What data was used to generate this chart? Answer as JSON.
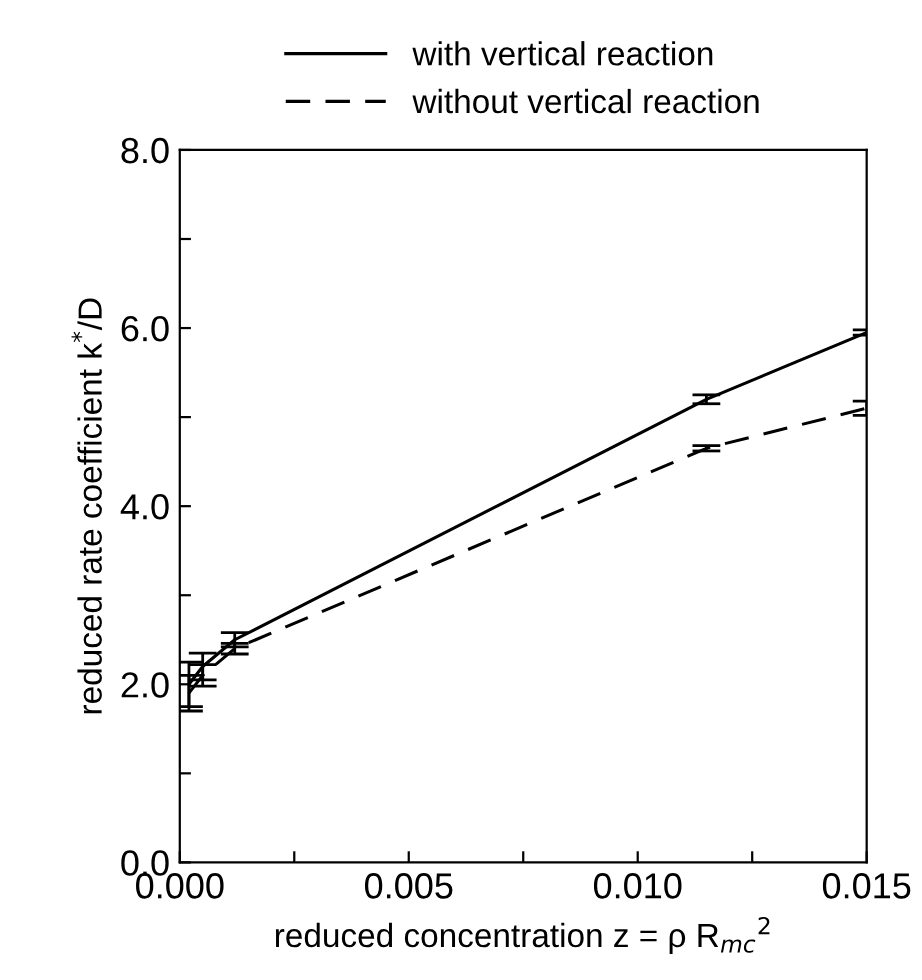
{
  "chart_data": {
    "type": "line",
    "xlabel": "reduced concentration z = ρ R$_{mc}$$^{2}$",
    "ylabel": "reduced rate coefficient k$^{*}$/D",
    "x": [
      0.0002,
      0.0005,
      0.0012,
      0.0115,
      0.015
    ],
    "series": [
      {
        "name": "with vertical reaction",
        "color": "#000000",
        "line_style": "solid",
        "values": [
          2.0,
          2.2,
          2.5,
          5.2,
          5.95
        ],
        "errors": [
          0.25,
          0.15,
          0.08,
          0.05,
          0.03
        ]
      },
      {
        "name": "without vertical reaction",
        "color": "#000000",
        "line_style": "dashed",
        "values": [
          1.9,
          2.1,
          2.4,
          4.65,
          5.1
        ],
        "errors": [
          0.2,
          0.12,
          0.06,
          0.03,
          0.08
        ]
      }
    ],
    "xlim": [
      0,
      0.015
    ],
    "xticks": [
      {
        "value": 0,
        "label": "0.000"
      },
      {
        "value": 0.0025,
        "label": null
      },
      0.005,
      {
        "value": 0.0075,
        "label": null
      },
      {
        "value": 0.01,
        "label": "0.010"
      },
      {
        "value": 0.0125,
        "label": null
      },
      0.015
    ],
    "ylim": [
      0,
      8
    ],
    "yticks": [
      {
        "value": 0,
        "label": "0.0"
      },
      {
        "value": 1,
        "label": null
      },
      {
        "value": 2,
        "label": "2.0"
      },
      {
        "value": 3,
        "label": null
      },
      {
        "value": 4,
        "label": "4.0"
      },
      {
        "value": 5,
        "label": null
      },
      {
        "value": 6,
        "label": "6.0"
      },
      {
        "value": 7,
        "label": null
      },
      {
        "value": 8,
        "label": "8.0"
      }
    ],
    "legend": "top",
    "grid": false,
    "marker": "none"
  }
}
